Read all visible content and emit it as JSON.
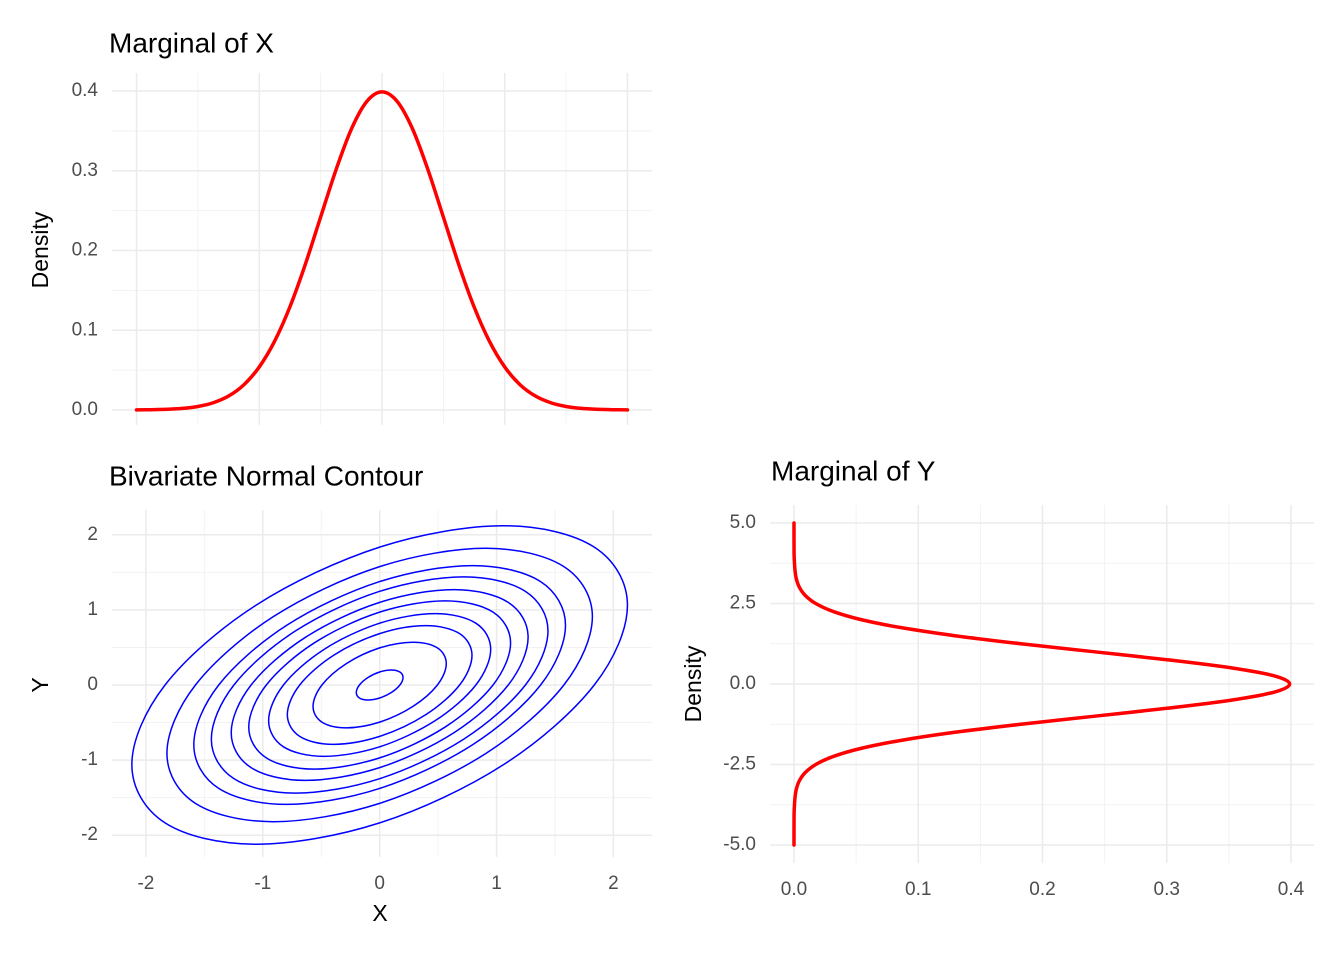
{
  "chart_data": [
    {
      "type": "line",
      "title": "Marginal of X",
      "ylabel": "Density",
      "color": "#FF0000",
      "grid": true,
      "show_xtick_labels": false,
      "x": [
        -4,
        -3.75,
        -3.5,
        -3.25,
        -3,
        -2.75,
        -2.5,
        -2.25,
        -2,
        -1.75,
        -1.5,
        -1.25,
        -1,
        -0.75,
        -0.5,
        -0.25,
        0,
        0.25,
        0.5,
        0.75,
        1,
        1.25,
        1.5,
        1.75,
        2,
        2.25,
        2.5,
        2.75,
        3,
        3.25,
        3.5,
        3.75,
        4
      ],
      "values": [
        0.0001,
        0.0004,
        0.0009,
        0.002,
        0.0044,
        0.0091,
        0.0175,
        0.0317,
        0.054,
        0.0863,
        0.1295,
        0.1826,
        0.242,
        0.3011,
        0.3521,
        0.3867,
        0.3989,
        0.3867,
        0.3521,
        0.3011,
        0.242,
        0.1826,
        0.1295,
        0.0863,
        0.054,
        0.0317,
        0.0175,
        0.0091,
        0.0044,
        0.002,
        0.0009,
        0.0004,
        0.0001
      ],
      "xlim": [
        -4.4,
        4.4
      ],
      "xticks": [
        -4,
        -2,
        0,
        2,
        4
      ],
      "ylim": [
        -0.0188,
        0.4226
      ],
      "yticks": [
        {
          "value": 0,
          "label": "0.0"
        },
        0.1,
        0.2,
        0.3,
        0.4
      ]
    },
    {
      "type": "contour",
      "title": "Bivariate Normal Contour",
      "xlabel": "X",
      "ylabel": "Y",
      "color": "#0000FF",
      "grid": true,
      "xlim": [
        -2.29,
        2.33
      ],
      "xticks": [
        -2,
        -1,
        0,
        1,
        2
      ],
      "ylim": [
        -2.29,
        2.33
      ],
      "yticks": [
        -2,
        -1,
        0,
        1,
        2
      ],
      "series": [
        {
          "x": [
            1.836,
            2.12,
            1.836,
            1.06,
            0,
            -1.06,
            -1.836,
            -2.12,
            -1.836,
            -1.06,
            0,
            1.06
          ],
          "y": [
            1.836,
            1.06,
            0,
            -1.06,
            -1.836,
            -2.12,
            -1.836,
            -1.06,
            0,
            1.06,
            1.836,
            2.12
          ]
        },
        {
          "x": [
            1.576,
            1.82,
            1.576,
            0.91,
            0,
            -0.91,
            -1.576,
            -1.82,
            -1.576,
            -0.91,
            0,
            0.91
          ],
          "y": [
            1.576,
            0.91,
            0,
            -0.91,
            -1.576,
            -1.82,
            -1.576,
            -0.91,
            0,
            0.91,
            1.576,
            1.82
          ]
        },
        {
          "x": [
            1.377,
            1.59,
            1.377,
            0.795,
            0,
            -0.795,
            -1.377,
            -1.59,
            -1.377,
            -0.795,
            0,
            0.795
          ],
          "y": [
            1.377,
            0.795,
            0,
            -0.795,
            -1.377,
            -1.59,
            -1.377,
            -0.795,
            0,
            0.795,
            1.377,
            1.59
          ]
        },
        {
          "x": [
            1.247,
            1.44,
            1.247,
            0.72,
            0,
            -0.72,
            -1.247,
            -1.44,
            -1.247,
            -0.72,
            0,
            0.72
          ],
          "y": [
            1.247,
            0.72,
            0,
            -0.72,
            -1.247,
            -1.44,
            -1.247,
            -0.72,
            0,
            0.72,
            1.247,
            1.44
          ]
        },
        {
          "x": [
            1.1,
            1.27,
            1.1,
            0.635,
            0,
            -0.635,
            -1.1,
            -1.27,
            -1.1,
            -0.635,
            0,
            0.635
          ],
          "y": [
            1.1,
            0.635,
            0,
            -0.635,
            -1.1,
            -1.27,
            -1.1,
            -0.635,
            0,
            0.635,
            1.1,
            1.27
          ]
        },
        {
          "x": [
            0.97,
            1.12,
            0.97,
            0.56,
            0,
            -0.56,
            -0.97,
            -1.12,
            -0.97,
            -0.56,
            0,
            0.56
          ],
          "y": [
            0.97,
            0.56,
            0,
            -0.56,
            -0.97,
            -1.12,
            -0.97,
            -0.56,
            0,
            0.56,
            0.97,
            1.12
          ]
        },
        {
          "x": [
            0.823,
            0.95,
            0.823,
            0.475,
            0,
            -0.475,
            -0.823,
            -0.95,
            -0.823,
            -0.475,
            0,
            0.475
          ],
          "y": [
            0.823,
            0.475,
            0,
            -0.475,
            -0.823,
            -0.95,
            -0.823,
            -0.475,
            0,
            0.475,
            0.823,
            0.95
          ]
        },
        {
          "x": [
            0.684,
            0.79,
            0.684,
            0.395,
            0,
            -0.395,
            -0.684,
            -0.79,
            -0.684,
            -0.395,
            0,
            0.395
          ],
          "y": [
            0.684,
            0.395,
            0,
            -0.395,
            -0.684,
            -0.79,
            -0.684,
            -0.395,
            0,
            0.395,
            0.684,
            0.79
          ]
        },
        {
          "x": [
            0.494,
            0.57,
            0.494,
            0.285,
            0,
            -0.285,
            -0.494,
            -0.57,
            -0.494,
            -0.285,
            0,
            0.285
          ],
          "y": [
            0.494,
            0.285,
            0,
            -0.285,
            -0.494,
            -0.57,
            -0.494,
            -0.285,
            0,
            0.285,
            0.494,
            0.57
          ]
        },
        {
          "x": [
            0.173,
            0.2,
            0.173,
            0.1,
            0,
            -0.1,
            -0.173,
            -0.2,
            -0.173,
            -0.1,
            0,
            0.1
          ],
          "y": [
            0.173,
            0.1,
            0,
            -0.1,
            -0.173,
            -0.2,
            -0.173,
            -0.1,
            0,
            0.1,
            0.173,
            0.2
          ]
        }
      ]
    },
    {
      "type": "line",
      "orientation": "horizontal",
      "title": "Marginal of Y",
      "ylabel": "Density",
      "color": "#FF0000",
      "grid": true,
      "y": [
        -5,
        -4.75,
        -4.5,
        -4.25,
        -4,
        -3.75,
        -3.5,
        -3.25,
        -3,
        -2.75,
        -2.5,
        -2.25,
        -2,
        -1.75,
        -1.5,
        -1.25,
        -1,
        -0.75,
        -0.5,
        -0.25,
        0,
        0.25,
        0.5,
        0.75,
        1,
        1.25,
        1.5,
        1.75,
        2,
        2.25,
        2.5,
        2.75,
        3,
        3.25,
        3.5,
        3.75,
        4,
        4.25,
        4.5,
        4.75,
        5
      ],
      "values": [
        1e-06,
        1e-05,
        2e-05,
        5e-05,
        0.0001,
        0.0004,
        0.0009,
        0.002,
        0.0044,
        0.0091,
        0.0175,
        0.0317,
        0.054,
        0.0863,
        0.1295,
        0.1826,
        0.242,
        0.3011,
        0.3521,
        0.3867,
        0.3989,
        0.3867,
        0.3521,
        0.3011,
        0.242,
        0.1826,
        0.1295,
        0.0863,
        0.054,
        0.0317,
        0.0175,
        0.0091,
        0.0044,
        0.002,
        0.0009,
        0.0004,
        0.0001,
        5e-05,
        2e-05,
        1e-05,
        1e-06
      ],
      "xlim": [
        -0.0193,
        0.4185
      ],
      "xticks": [
        {
          "value": 0,
          "label": "0.0"
        },
        0.1,
        0.2,
        0.3,
        0.4
      ],
      "ylim": [
        -5.56,
        5.56
      ],
      "yticks": [
        {
          "value": -5,
          "label": "-5.0"
        },
        -2.5,
        {
          "value": 0,
          "label": "0.0"
        },
        2.5,
        {
          "value": 5,
          "label": "5.0"
        }
      ]
    }
  ]
}
